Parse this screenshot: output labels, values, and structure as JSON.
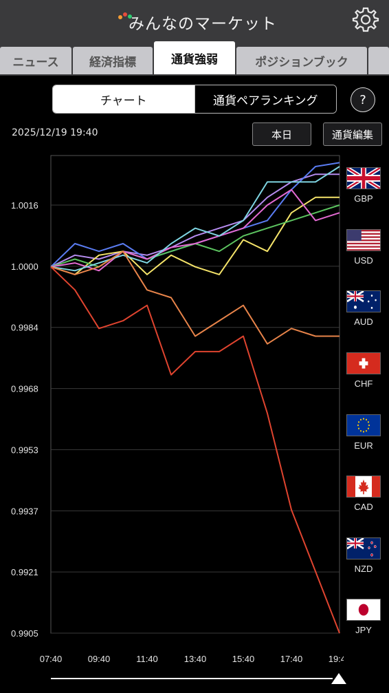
{
  "header": {
    "title": "みんなのマーケット",
    "logo_icon": "app-logo-icon",
    "settings_icon": "gear-icon"
  },
  "tabs": [
    {
      "label": "ニュース",
      "active": false
    },
    {
      "label": "経済指標",
      "active": false
    },
    {
      "label": "通貨強弱",
      "active": true
    },
    {
      "label": "ポジションブック",
      "active": false
    },
    {
      "label": "",
      "active": false
    }
  ],
  "segment": {
    "chart_label": "チャート",
    "ranking_label": "通貨ペアランキング"
  },
  "help_label": "?",
  "datetime": "2025/12/19 19:40",
  "buttons": {
    "today": "本日",
    "edit": "通貨編集"
  },
  "legend": [
    {
      "code": "GBP",
      "color": "#b68cf0"
    },
    {
      "code": "USD",
      "color": "#5a7cf2"
    },
    {
      "code": "AUD",
      "color": "#f5e46a"
    },
    {
      "code": "CHF",
      "color": "#5cc460"
    },
    {
      "code": "EUR",
      "color": "#e36ad2"
    },
    {
      "code": "CAD",
      "color": "#7fd6e3"
    },
    {
      "code": "NZD",
      "color": "#e8844a"
    },
    {
      "code": "JPY",
      "color": "#e0442f"
    }
  ],
  "chart_data": {
    "type": "line",
    "x": [
      "07:40",
      "08:40",
      "09:40",
      "10:40",
      "11:40",
      "12:40",
      "13:40",
      "14:40",
      "15:40",
      "16:40",
      "17:40",
      "18:40",
      "19:40"
    ],
    "xticks": [
      "07:40",
      "09:40",
      "11:40",
      "13:40",
      "15:40",
      "17:40",
      "19:40"
    ],
    "yticks": [
      "1.0016",
      "1.0000",
      "0.9984",
      "0.9968",
      "0.9953",
      "0.9937",
      "0.9921",
      "0.9905"
    ],
    "ylim": [
      0.9905,
      1.0032
    ],
    "grid": true,
    "series": [
      {
        "name": "GBP",
        "color": "#b68cf0",
        "values": [
          1.0,
          1.0003,
          1.0002,
          1.0004,
          1.0003,
          1.0005,
          1.0008,
          1.001,
          1.0012,
          1.0018,
          1.0022,
          1.0024,
          1.0024
        ]
      },
      {
        "name": "USD",
        "color": "#5a7cf2",
        "values": [
          1.0,
          1.0006,
          1.0004,
          1.0006,
          1.0002,
          1.0004,
          1.0006,
          1.0008,
          1.001,
          1.0012,
          1.002,
          1.0026,
          1.0027
        ]
      },
      {
        "name": "AUD",
        "color": "#f5e46a",
        "values": [
          1.0,
          0.9998,
          1.0003,
          1.0004,
          0.9998,
          1.0003,
          1.0,
          0.9998,
          1.0007,
          1.0004,
          1.0014,
          1.0018,
          1.0018
        ]
      },
      {
        "name": "CHF",
        "color": "#5cc460",
        "values": [
          1.0,
          1.0002,
          1.0,
          1.0004,
          1.0002,
          1.0004,
          1.0006,
          1.0004,
          1.0008,
          1.001,
          1.0012,
          1.0014,
          1.0016
        ]
      },
      {
        "name": "EUR",
        "color": "#e36ad2",
        "values": [
          1.0,
          1.0001,
          0.9999,
          1.0004,
          1.0002,
          1.0005,
          1.0006,
          1.0008,
          1.001,
          1.0016,
          1.002,
          1.0012,
          1.0014
        ]
      },
      {
        "name": "CAD",
        "color": "#7fd6e3",
        "values": [
          1.0,
          0.9999,
          1.0001,
          1.0003,
          1.0001,
          1.0006,
          1.001,
          1.0008,
          1.0012,
          1.0022,
          1.0022,
          1.0022,
          1.0026
        ]
      },
      {
        "name": "NZD",
        "color": "#e8844a",
        "values": [
          1.0,
          0.9998,
          1.0,
          1.0004,
          0.9994,
          0.9992,
          0.9982,
          0.9986,
          0.999,
          0.998,
          0.9984,
          0.9982,
          0.9982
        ]
      },
      {
        "name": "JPY",
        "color": "#e0442f",
        "values": [
          1.0,
          0.9994,
          0.9984,
          0.9986,
          0.999,
          0.9972,
          0.9978,
          0.9978,
          0.9982,
          0.9962,
          0.9937,
          0.9921,
          0.9905
        ]
      }
    ]
  }
}
